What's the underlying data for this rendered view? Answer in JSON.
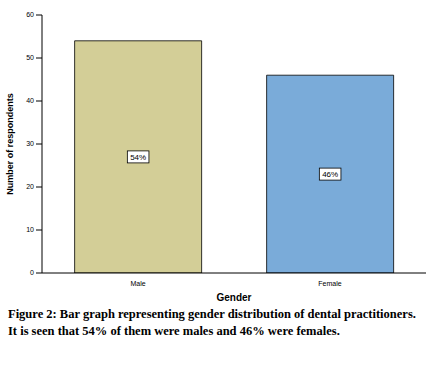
{
  "chart_data": {
    "type": "bar",
    "categories": [
      "Male",
      "Female"
    ],
    "values": [
      54,
      46
    ],
    "value_labels": [
      "54%",
      "46%"
    ],
    "data_labels": true,
    "colors": [
      "#d3ce97",
      "#7aabd9"
    ],
    "x_label": "Gender",
    "y_label": "Number of respondents",
    "ylim": [
      0,
      60
    ],
    "yticks": [
      0,
      10,
      20,
      30,
      40,
      50,
      60
    ],
    "grid": false,
    "caption": "Figure 2: Bar graph representing gender distribution of dental practitioners. It is seen that 54% of them were males and 46% were females."
  }
}
